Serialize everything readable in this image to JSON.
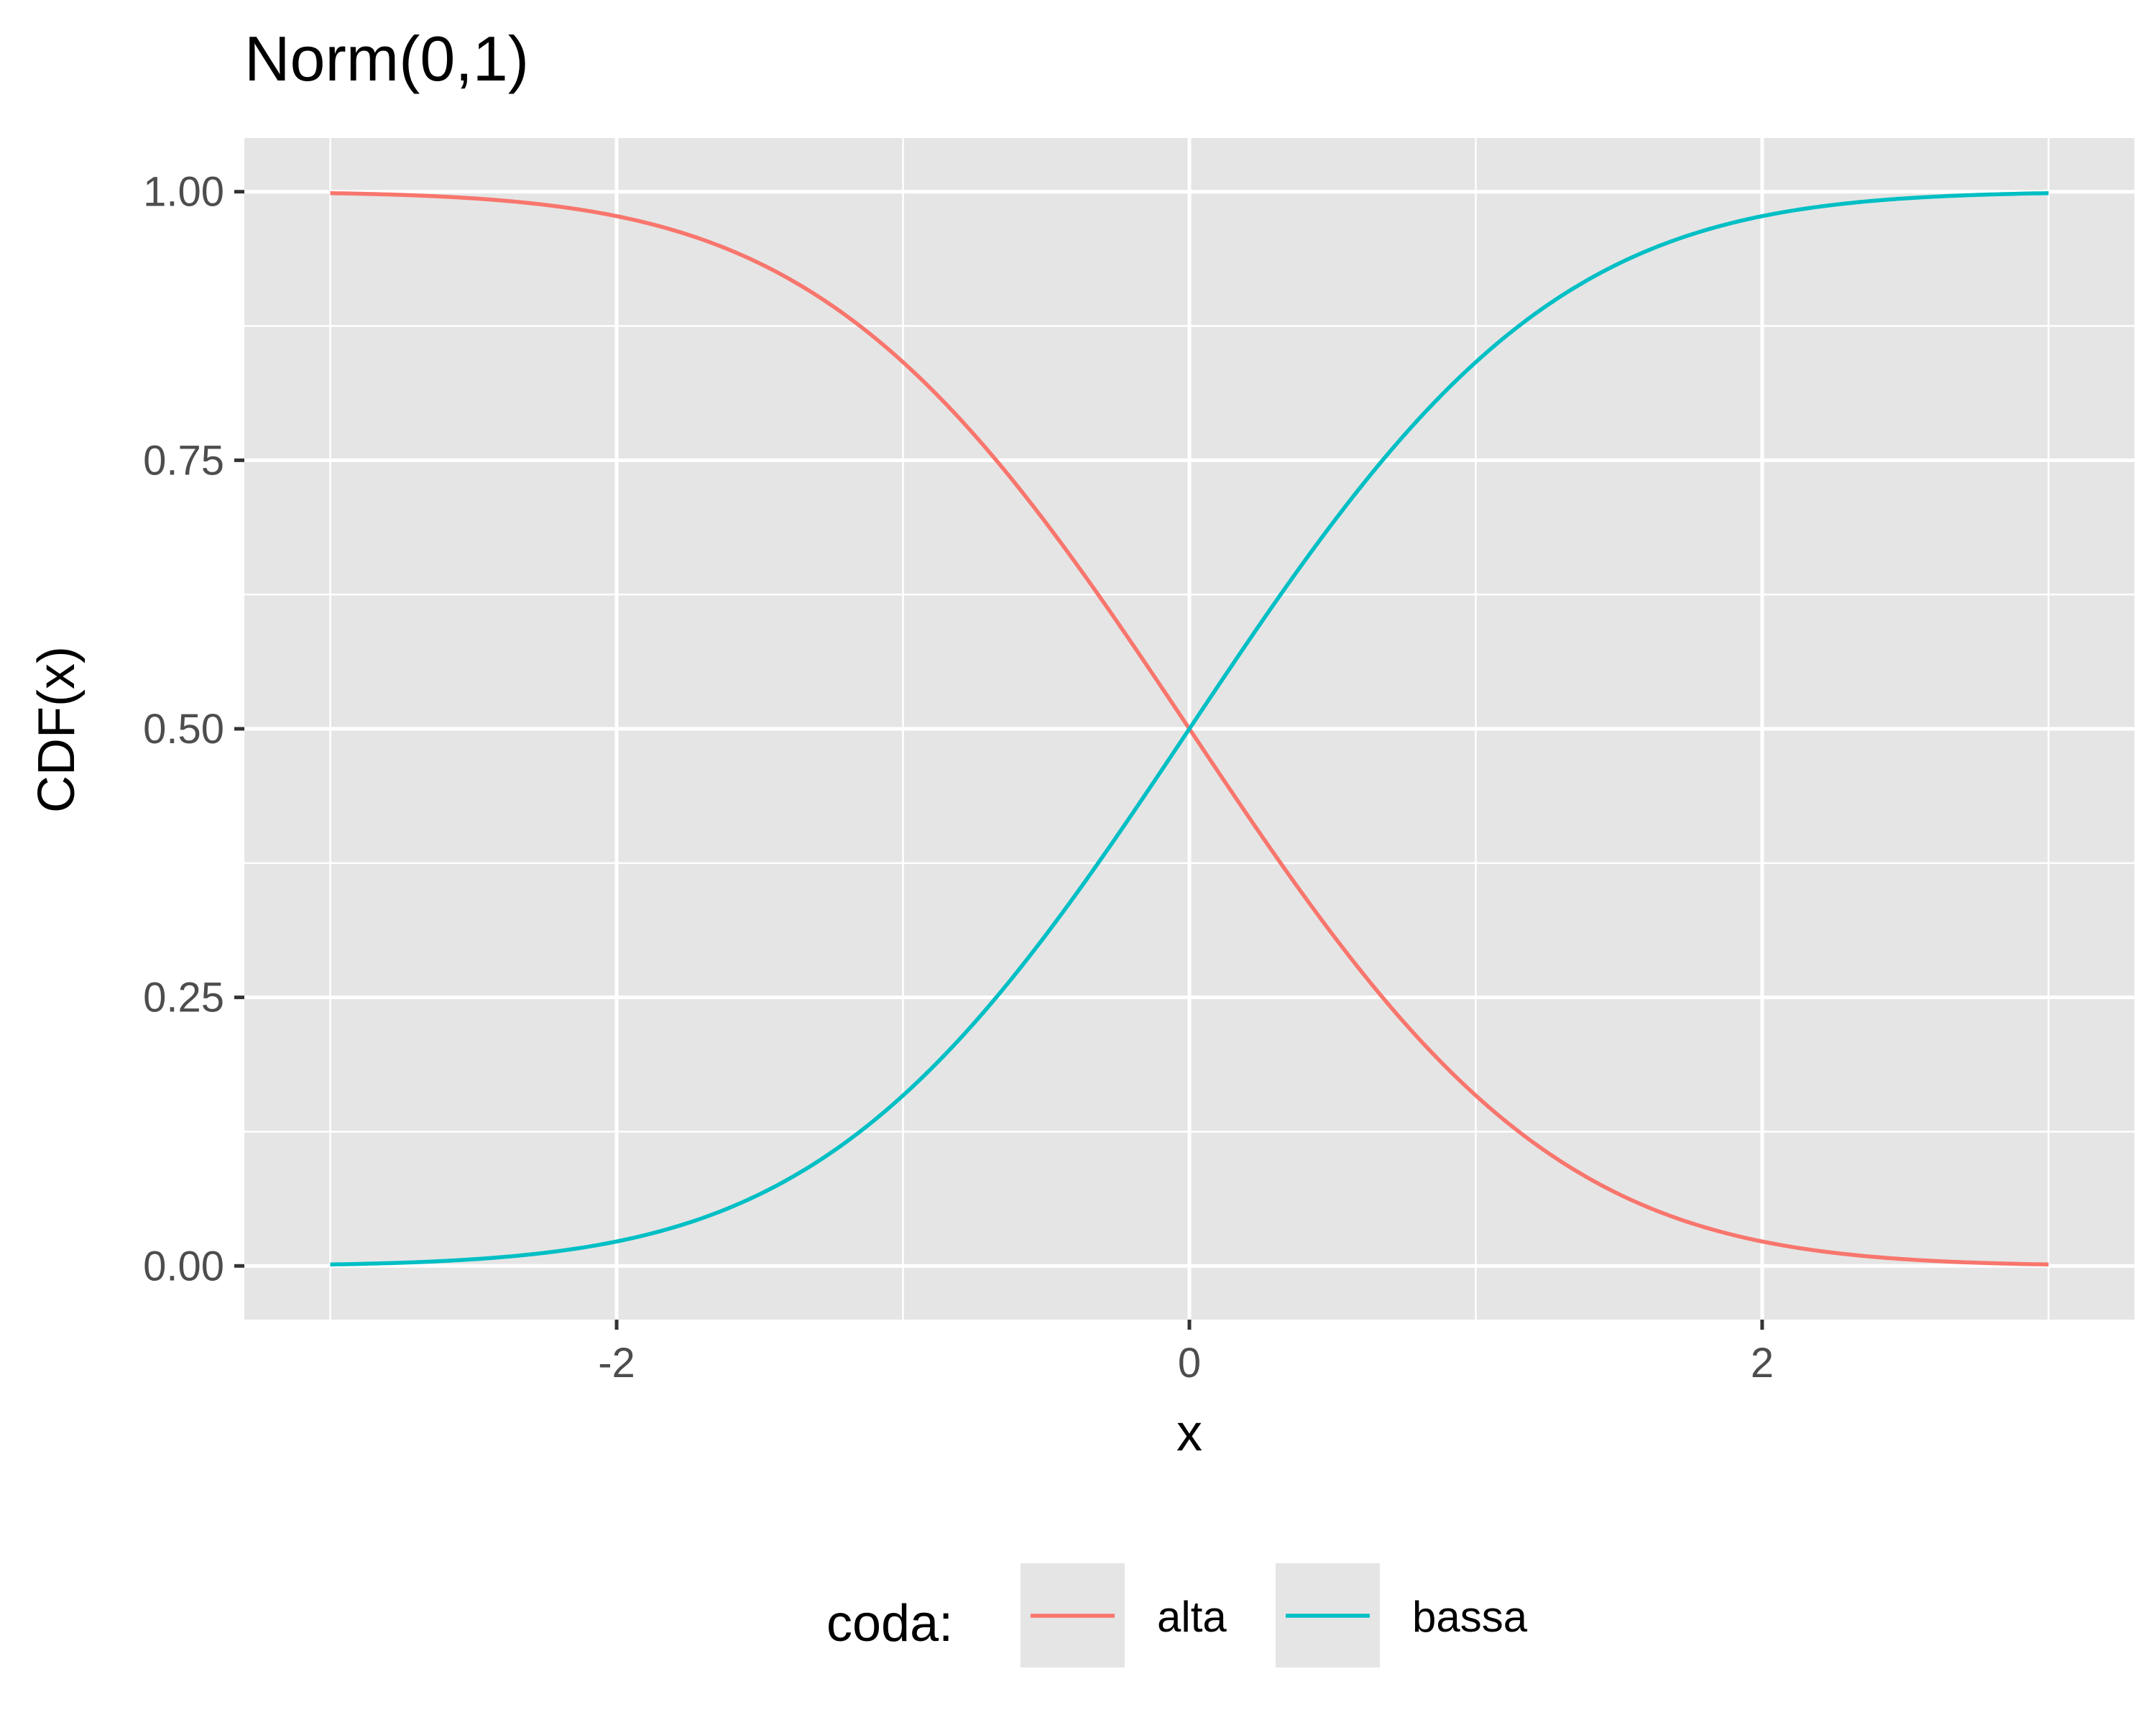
{
  "chart_data": {
    "type": "line",
    "title": "Norm(0,1)",
    "xlabel": "x",
    "ylabel": "CDF(x)",
    "xlim": [
      -3.3,
      3.3
    ],
    "ylim": [
      -0.05,
      1.05
    ],
    "x_ticks": [
      {
        "value": -2,
        "label": "-2"
      },
      {
        "value": 0,
        "label": "0"
      },
      {
        "value": 2,
        "label": "2"
      }
    ],
    "x_minor_ticks": [
      -3,
      -1,
      1,
      3
    ],
    "y_ticks": [
      {
        "value": 0,
        "label": "0.00"
      },
      {
        "value": 0.25,
        "label": "0.25"
      },
      {
        "value": 0.5,
        "label": "0.50"
      },
      {
        "value": 0.75,
        "label": "0.75"
      },
      {
        "value": 1,
        "label": "1.00"
      }
    ],
    "y_minor_ticks": [
      0.125,
      0.375,
      0.625,
      0.875
    ],
    "grid": true,
    "legend": {
      "title": "coda:",
      "position": "bottom"
    },
    "x": [
      -3.0,
      -2.5,
      -2.0,
      -1.5,
      -1.0,
      -0.5,
      0.0,
      0.5,
      1.0,
      1.5,
      2.0,
      2.5,
      3.0
    ],
    "series": [
      {
        "name": "alta",
        "color": "#F8766D",
        "values": [
          0.9987,
          0.9938,
          0.9772,
          0.9332,
          0.8413,
          0.6915,
          0.5,
          0.3085,
          0.1587,
          0.0668,
          0.0228,
          0.0062,
          0.0013
        ]
      },
      {
        "name": "bassa",
        "color": "#00BFC4",
        "values": [
          0.0013,
          0.0062,
          0.0228,
          0.0668,
          0.1587,
          0.3085,
          0.5,
          0.6915,
          0.8413,
          0.9332,
          0.9772,
          0.9938,
          0.9987
        ]
      }
    ]
  }
}
